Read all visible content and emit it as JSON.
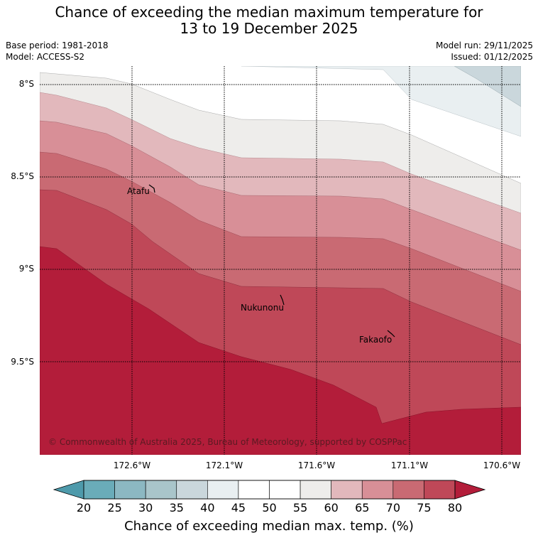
{
  "title": {
    "line1": "Chance of exceeding the median maximum temperature for",
    "line2": "13 to 19 December 2025"
  },
  "meta": {
    "base_period": "Base period: 1981-2018",
    "model": "Model: ACCESS-S2",
    "model_run": "Model run: 29/11/2025",
    "issued": "Issued: 01/12/2025"
  },
  "axes": {
    "lat_labels": [
      "8°S",
      "8.5°S",
      "9°S",
      "9.5°S"
    ],
    "lon_labels": [
      "172.6°W",
      "172.1°W",
      "171.6°W",
      "171.1°W",
      "170.6°W"
    ]
  },
  "places": [
    {
      "name": "Atafu"
    },
    {
      "name": "Nukunonu"
    },
    {
      "name": "Fakaofo"
    }
  ],
  "copyright": "© Commonwealth of Australia 2025, Bureau of Meteorology, supported by COSPPac",
  "colorbar": {
    "ticks": [
      "20",
      "25",
      "30",
      "35",
      "40",
      "45",
      "50",
      "55",
      "60",
      "65",
      "70",
      "75",
      "80"
    ],
    "colors": [
      "#6aacb9",
      "#8cb8c2",
      "#a9c5ca",
      "#cad7dc",
      "#e9eff1",
      "#ffffff",
      "#ffffff",
      "#eeedeb",
      "#e2b8bc",
      "#d88f97",
      "#c96a73",
      "#bf4858"
    ],
    "low_color": "#4e9aab",
    "high_color": "#b31d3a",
    "title": "Chance of exceeding median max. temp. (%)"
  }
}
